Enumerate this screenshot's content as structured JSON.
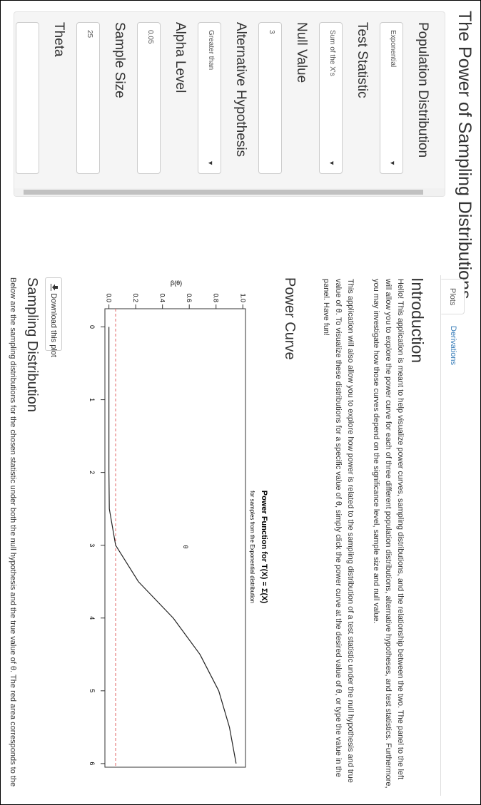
{
  "title": "The Power of Sampling Distributions",
  "sidebar": {
    "fields": [
      {
        "label": "Population Distribution",
        "value": "Exponential",
        "kind": "select"
      },
      {
        "label": "Test Statistic",
        "value": "Sum of the X's",
        "kind": "select"
      },
      {
        "label": "Null Value",
        "value": "3",
        "kind": "input"
      },
      {
        "label": "Alternative Hypothesis",
        "value": "Greater than",
        "kind": "select"
      },
      {
        "label": "Alpha Level",
        "value": "0.05",
        "kind": "input"
      },
      {
        "label": "Sample Size",
        "value": "25",
        "kind": "input"
      },
      {
        "label": "Theta",
        "kind": "input"
      }
    ]
  },
  "tabs": [
    "Plots",
    "Derivations"
  ],
  "active_tab": 0,
  "intro": {
    "heading": "Introduction",
    "paragraphs": [
      "Hello! This application is meant to help visualize power curves, sampling distributions, and the relationship between the two. The panel to the left will allow you to explore the power curve for each of three different population distributions, alternative hypotheses, and test statistics. Furthermore, you may investigate how those curves depend on the significance level, sample size and null value.",
      "This application will also allow you to explore how power is related to the sampling distribution of a test statistic under the null hypothesis and true value of θ. To visualize these distributions for a specific value of θ, simply click the power curve at the desired value of θ, or type the value in the panel. Have fun!"
    ]
  },
  "power_heading": "Power Curve",
  "download": "Download this plot",
  "chart_data": {
    "type": "line",
    "title": "Power Function for T(X) = Σ(X)",
    "subtitle": "for samples from the Exponential distribution",
    "xlabel": "θ",
    "ylabel": "β(θ)",
    "x": [
      0,
      0.5,
      1,
      1.5,
      2,
      2.5,
      3,
      3.5,
      4,
      4.5,
      5,
      5.5,
      6
    ],
    "values": [
      0,
      0,
      0,
      0,
      0,
      0.003,
      0.05,
      0.22,
      0.48,
      0.68,
      0.82,
      0.9,
      0.95
    ],
    "color": "#222222",
    "reference_line": {
      "value": 0.05,
      "color": "#e06666",
      "dashed": true
    },
    "xlim": [
      -0.25,
      6.05
    ],
    "ylim": [
      -0.03,
      1.02
    ],
    "xticks": [
      0,
      1,
      2,
      3,
      4,
      5,
      6
    ],
    "yticks": [
      {
        "value": 0,
        "label": "0.0"
      },
      0.2,
      0.4,
      0.6,
      0.8,
      {
        "value": 1,
        "label": "1.0"
      }
    ]
  },
  "sampling": {
    "heading": "Sampling Distribution",
    "text": "Below are the sampling distributions for the chosen statistic under both the null hypothesis and the true value of θ. The red area corresponds to the"
  }
}
